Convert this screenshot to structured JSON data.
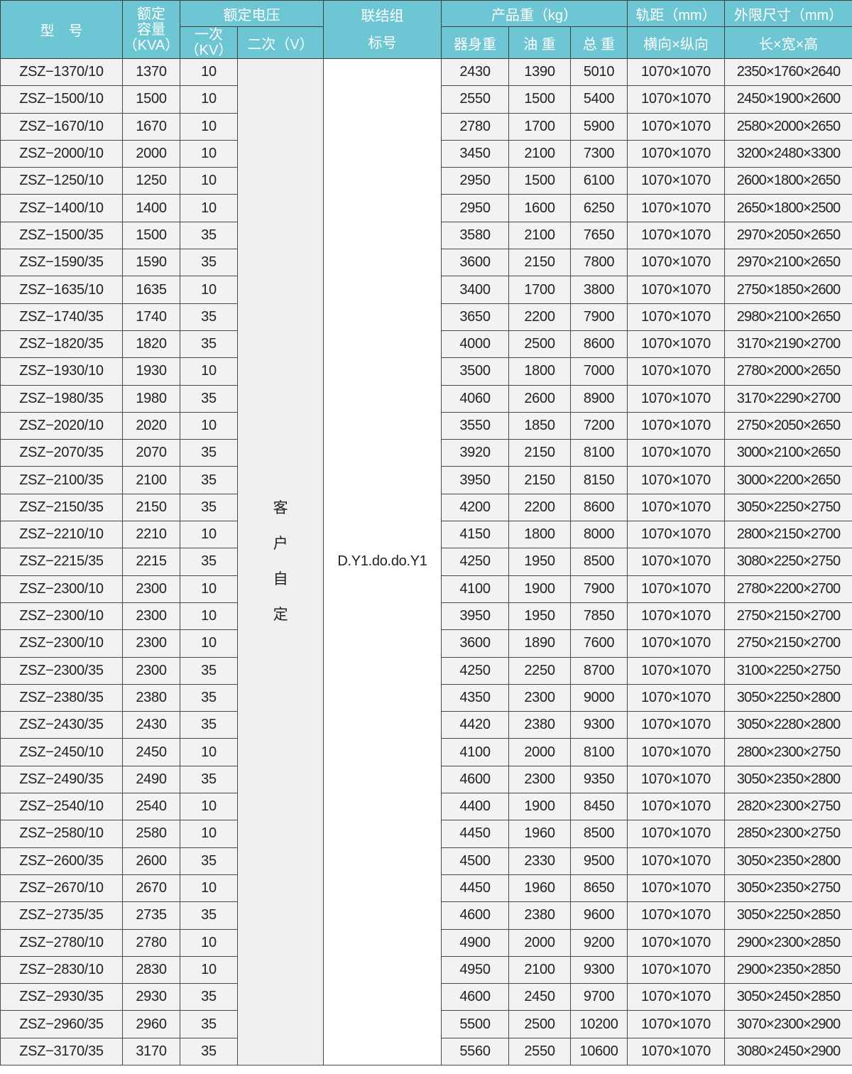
{
  "header": {
    "model": "型　号",
    "capacity": [
      "额定",
      "容量",
      "（KVA）"
    ],
    "voltage": "额定电压",
    "primary": [
      "一次",
      "（KV）"
    ],
    "secondary": "二次（V）",
    "connection": [
      "联结组",
      "标号"
    ],
    "weight": "产品重（kg）",
    "body_weight": "器身重",
    "oil_weight": "油 重",
    "total_weight": "总 重",
    "gauge": "轨距（mm）",
    "gauge_sub": "横向×纵向",
    "dims": "外限尺寸（mm）",
    "dims_sub": "长×宽×高"
  },
  "secondary_value": [
    "客",
    "户",
    "自",
    "定"
  ],
  "connection_value": "D.Y1.do.do.Y1",
  "colors": {
    "header_bg": "#6dc6d3",
    "cell_bg": "#f2f2f2",
    "border": "#4a4a4a"
  },
  "rows": [
    [
      "ZSZ−1370/10",
      "1370",
      "10",
      "2430",
      "1390",
      "5010",
      "1070×1070",
      "2350×1760×2640"
    ],
    [
      "ZSZ−1500/10",
      "1500",
      "10",
      "2550",
      "1500",
      "5400",
      "1070×1070",
      "2450×1900×2600"
    ],
    [
      "ZSZ−1670/10",
      "1670",
      "10",
      "2780",
      "1700",
      "5900",
      "1070×1070",
      "2580×2000×2650"
    ],
    [
      "ZSZ−2000/10",
      "2000",
      "10",
      "3450",
      "2100",
      "7300",
      "1070×1070",
      "3200×2480×3300"
    ],
    [
      "ZSZ−1250/10",
      "1250",
      "10",
      "2950",
      "1500",
      "6100",
      "1070×1070",
      "2600×1800×2650"
    ],
    [
      "ZSZ−1400/10",
      "1400",
      "10",
      "2950",
      "1600",
      "6250",
      "1070×1070",
      "2650×1800×2500"
    ],
    [
      "ZSZ−1500/35",
      "1500",
      "35",
      "3580",
      "2100",
      "7650",
      "1070×1070",
      "2970×2050×2650"
    ],
    [
      "ZSZ−1590/35",
      "1590",
      "35",
      "3600",
      "2150",
      "7800",
      "1070×1070",
      "2970×2100×2650"
    ],
    [
      "ZSZ−1635/10",
      "1635",
      "10",
      "3400",
      "1700",
      "3800",
      "1070×1070",
      "2750×1850×2600"
    ],
    [
      "ZSZ−1740/35",
      "1740",
      "35",
      "3650",
      "2200",
      "7900",
      "1070×1070",
      "2980×2100×2650"
    ],
    [
      "ZSZ−1820/35",
      "1820",
      "35",
      "4000",
      "2500",
      "8600",
      "1070×1070",
      "3170×2190×2700"
    ],
    [
      "ZSZ−1930/10",
      "1930",
      "10",
      "3500",
      "1800",
      "7000",
      "1070×1070",
      "2780×2000×2650"
    ],
    [
      "ZSZ−1980/35",
      "1980",
      "35",
      "4060",
      "2600",
      "8900",
      "1070×1070",
      "3170×2290×2700"
    ],
    [
      "ZSZ−2020/10",
      "2020",
      "10",
      "3550",
      "1850",
      "7200",
      "1070×1070",
      "2750×2050×2650"
    ],
    [
      "ZSZ−2070/35",
      "2070",
      "35",
      "3920",
      "2150",
      "8100",
      "1070×1070",
      "3000×2100×2650"
    ],
    [
      "ZSZ−2100/35",
      "2100",
      "35",
      "3950",
      "2150",
      "8150",
      "1070×1070",
      "3000×2200×2650"
    ],
    [
      "ZSZ−2150/35",
      "2150",
      "35",
      "4200",
      "2200",
      "8600",
      "1070×1070",
      "3050×2250×2750"
    ],
    [
      "ZSZ−2210/10",
      "2210",
      "10",
      "4150",
      "1800",
      "8000",
      "1070×1070",
      "2800×2150×2700"
    ],
    [
      "ZSZ−2215/35",
      "2215",
      "35",
      "4250",
      "1950",
      "8500",
      "1070×1070",
      "3080×2250×2750"
    ],
    [
      "ZSZ−2300/10",
      "2300",
      "10",
      "4100",
      "1900",
      "7900",
      "1070×1070",
      "2780×2200×2700"
    ],
    [
      "ZSZ−2300/10",
      "2300",
      "10",
      "3950",
      "1950",
      "7850",
      "1070×1070",
      "2750×2150×2700"
    ],
    [
      "ZSZ−2300/10",
      "2300",
      "10",
      "3600",
      "1890",
      "7600",
      "1070×1070",
      "2750×2150×2700"
    ],
    [
      "ZSZ−2300/35",
      "2300",
      "35",
      "4250",
      "2250",
      "8700",
      "1070×1070",
      "3100×2250×2750"
    ],
    [
      "ZSZ−2380/35",
      "2380",
      "35",
      "4350",
      "2300",
      "9000",
      "1070×1070",
      "3050×2250×2800"
    ],
    [
      "ZSZ−2430/35",
      "2430",
      "35",
      "4420",
      "2380",
      "9300",
      "1070×1070",
      "3050×2280×2800"
    ],
    [
      "ZSZ−2450/10",
      "2450",
      "10",
      "4100",
      "2000",
      "8100",
      "1070×1070",
      "2800×2300×2750"
    ],
    [
      "ZSZ−2490/35",
      "2490",
      "35",
      "4600",
      "2300",
      "9350",
      "1070×1070",
      "3050×2350×2800"
    ],
    [
      "ZSZ−2540/10",
      "2540",
      "10",
      "4400",
      "1900",
      "8450",
      "1070×1070",
      "2820×2300×2750"
    ],
    [
      "ZSZ−2580/10",
      "2580",
      "10",
      "4450",
      "1960",
      "8500",
      "1070×1070",
      "2850×2300×2750"
    ],
    [
      "ZSZ−2600/35",
      "2600",
      "35",
      "4500",
      "2330",
      "9500",
      "1070×1070",
      "3050×2350×2800"
    ],
    [
      "ZSZ−2670/10",
      "2670",
      "10",
      "4450",
      "1960",
      "8650",
      "1070×1070",
      "3050×2350×2750"
    ],
    [
      "ZSZ−2735/35",
      "2735",
      "35",
      "4600",
      "2380",
      "9600",
      "1070×1070",
      "3050×2250×2850"
    ],
    [
      "ZSZ−2780/10",
      "2780",
      "10",
      "4900",
      "2000",
      "9200",
      "1070×1070",
      "2900×2300×2850"
    ],
    [
      "ZSZ−2830/10",
      "2830",
      "10",
      "4950",
      "2100",
      "9300",
      "1070×1070",
      "2900×2350×2850"
    ],
    [
      "ZSZ−2930/35",
      "2930",
      "35",
      "4600",
      "2450",
      "9700",
      "1070×1070",
      "3050×2450×2850"
    ],
    [
      "ZSZ−2960/35",
      "2960",
      "35",
      "5500",
      "2500",
      "10200",
      "1070×1070",
      "3070×2300×2900"
    ],
    [
      "ZSZ−3170/35",
      "3170",
      "35",
      "5560",
      "2550",
      "10600",
      "1070×1070",
      "3080×2450×2900"
    ]
  ]
}
